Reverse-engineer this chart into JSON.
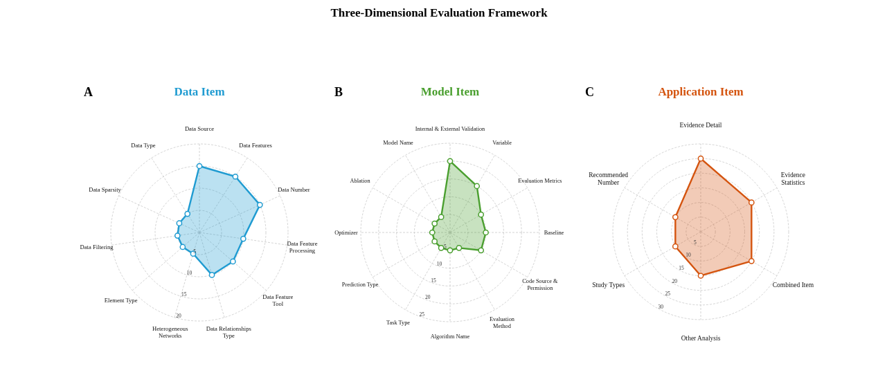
{
  "chart_data": [
    {
      "type": "other",
      "title": "Three-Dimensional Evaluation Framework"
    },
    {
      "type": "radar",
      "title": "Data Item",
      "annotations": [
        "A"
      ],
      "categories": [
        "Data Source",
        "Data Features",
        "Data Number",
        "Data Feature\nProcessing",
        "Data Feature\nTool",
        "Data Relationships\nType",
        "Heterogeneous\nNetworks",
        "Element Type",
        "Data Filtering",
        "Data Sparsity",
        "Data Type"
      ],
      "series": [
        {
          "color": "#1f9bd1",
          "values": [
            15,
            15,
            15,
            10,
            10,
            10,
            5,
            5,
            5,
            5,
            5
          ]
        }
      ],
      "ylim": [
        0,
        20
      ],
      "yticks": [
        5,
        10,
        15,
        20
      ],
      "grid": true,
      "marker": "circle"
    },
    {
      "type": "radar",
      "title": "Model Item",
      "annotations": [
        "B"
      ],
      "categories": [
        "Internal & External Validation",
        "Variable",
        "Evaluation Metrics",
        "Baseline",
        "Code Source &\nPermission",
        "Evaluation\nMethod",
        "Algorithm Name",
        "Task Type",
        "Prediction Type",
        "Optimizer",
        "Ablation",
        "Model Name"
      ],
      "series": [
        {
          "color": "#4a9f2f",
          "values": [
            20,
            15,
            10,
            10,
            10,
            5,
            5,
            5,
            5,
            5,
            5,
            5
          ]
        }
      ],
      "ylim": [
        0,
        25
      ],
      "yticks": [
        5,
        10,
        15,
        20,
        25
      ],
      "grid": true,
      "marker": "circle"
    },
    {
      "type": "radar",
      "title": "Application Item",
      "annotations": [
        "C"
      ],
      "categories": [
        "Evidence Detail",
        "Evidence\nStatistics",
        "Combined Item",
        "Other Analysis",
        "Study Types",
        "Recommended\nNumber"
      ],
      "series": [
        {
          "color": "#d4540f",
          "values": [
            25,
            20,
            20,
            15,
            10,
            10
          ]
        }
      ],
      "ylim": [
        0,
        30
      ],
      "yticks": [
        5,
        10,
        15,
        20,
        25,
        30
      ],
      "grid": true,
      "marker": "circle"
    }
  ]
}
